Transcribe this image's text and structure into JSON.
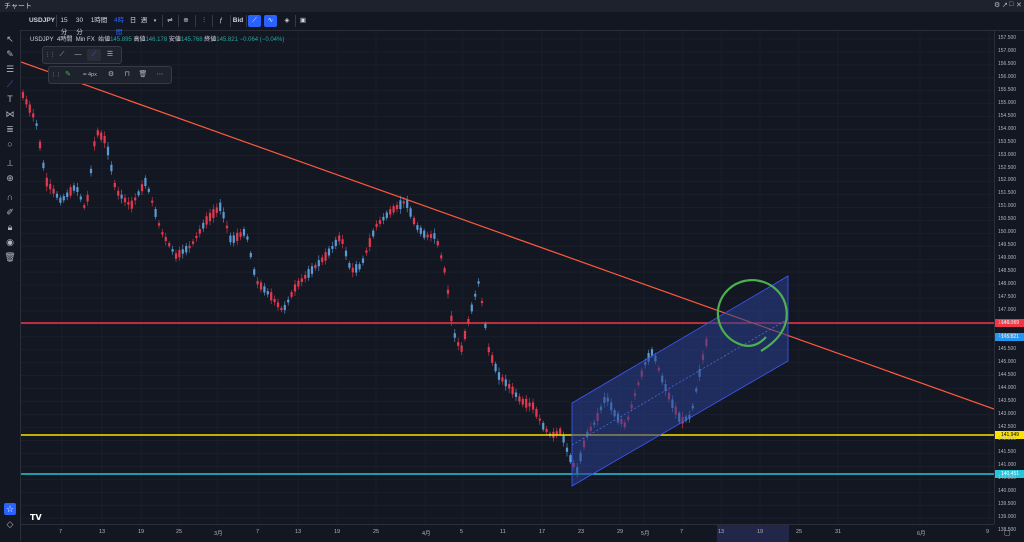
{
  "window": {
    "title": "チャート",
    "controls": [
      "⚙",
      "↗",
      "□",
      "✕"
    ]
  },
  "toolbar": {
    "symbol": "USDJPY",
    "intervals": [
      "15分",
      "30分",
      "1時間",
      "4時間",
      "日",
      "週"
    ],
    "active_interval": "4時間",
    "bid_label": "Bid"
  },
  "legend": {
    "symbol": "USDJPY",
    "interval": "4時間",
    "source": "Min FX",
    "open_label": "始値",
    "open": "145.895",
    "high_label": "高値",
    "high": "146.178",
    "low_label": "安値",
    "low": "145.768",
    "close_label": "終値",
    "close": "145.821",
    "change": "−0.064 (−0.04%)"
  },
  "drawing_toolbar": {
    "width_label": "4px"
  },
  "price_scale": {
    "labels": [
      "157.500",
      "157.000",
      "156.500",
      "156.000",
      "155.500",
      "155.000",
      "154.500",
      "154.000",
      "153.500",
      "153.000",
      "152.500",
      "152.000",
      "151.500",
      "151.000",
      "150.500",
      "150.000",
      "149.500",
      "149.000",
      "148.500",
      "148.000",
      "147.500",
      "147.000",
      "146.500",
      "146.000",
      "145.500",
      "145.000",
      "144.500",
      "144.000",
      "143.500",
      "143.000",
      "142.500",
      "142.000",
      "141.500",
      "141.000",
      "140.500",
      "140.000",
      "139.500",
      "139.000",
      "138.500"
    ],
    "red_line_price": "146.369",
    "current_price": "145.821",
    "yellow_line_price": "141.949",
    "cyan_line_price": "140.451"
  },
  "time_scale": {
    "labels": [
      "7",
      "13",
      "19",
      "25",
      "3月",
      "7",
      "13",
      "19",
      "25",
      "4月",
      "5",
      "11",
      "17",
      "23",
      "29",
      "5月",
      "7",
      "13",
      "19",
      "25",
      "31",
      "6月",
      "9"
    ]
  },
  "colors": {
    "background": "#131722",
    "up_candle": "#5b9bd5",
    "down_candle": "#e5394f",
    "red_line": "#f23645",
    "trend_line": "#ff5a3c",
    "yellow_line": "#fbe200",
    "cyan_line": "#26c6da",
    "channel_fill": "#2a3f8f",
    "green_mark": "#4caf50",
    "accent": "#2962ff"
  }
}
